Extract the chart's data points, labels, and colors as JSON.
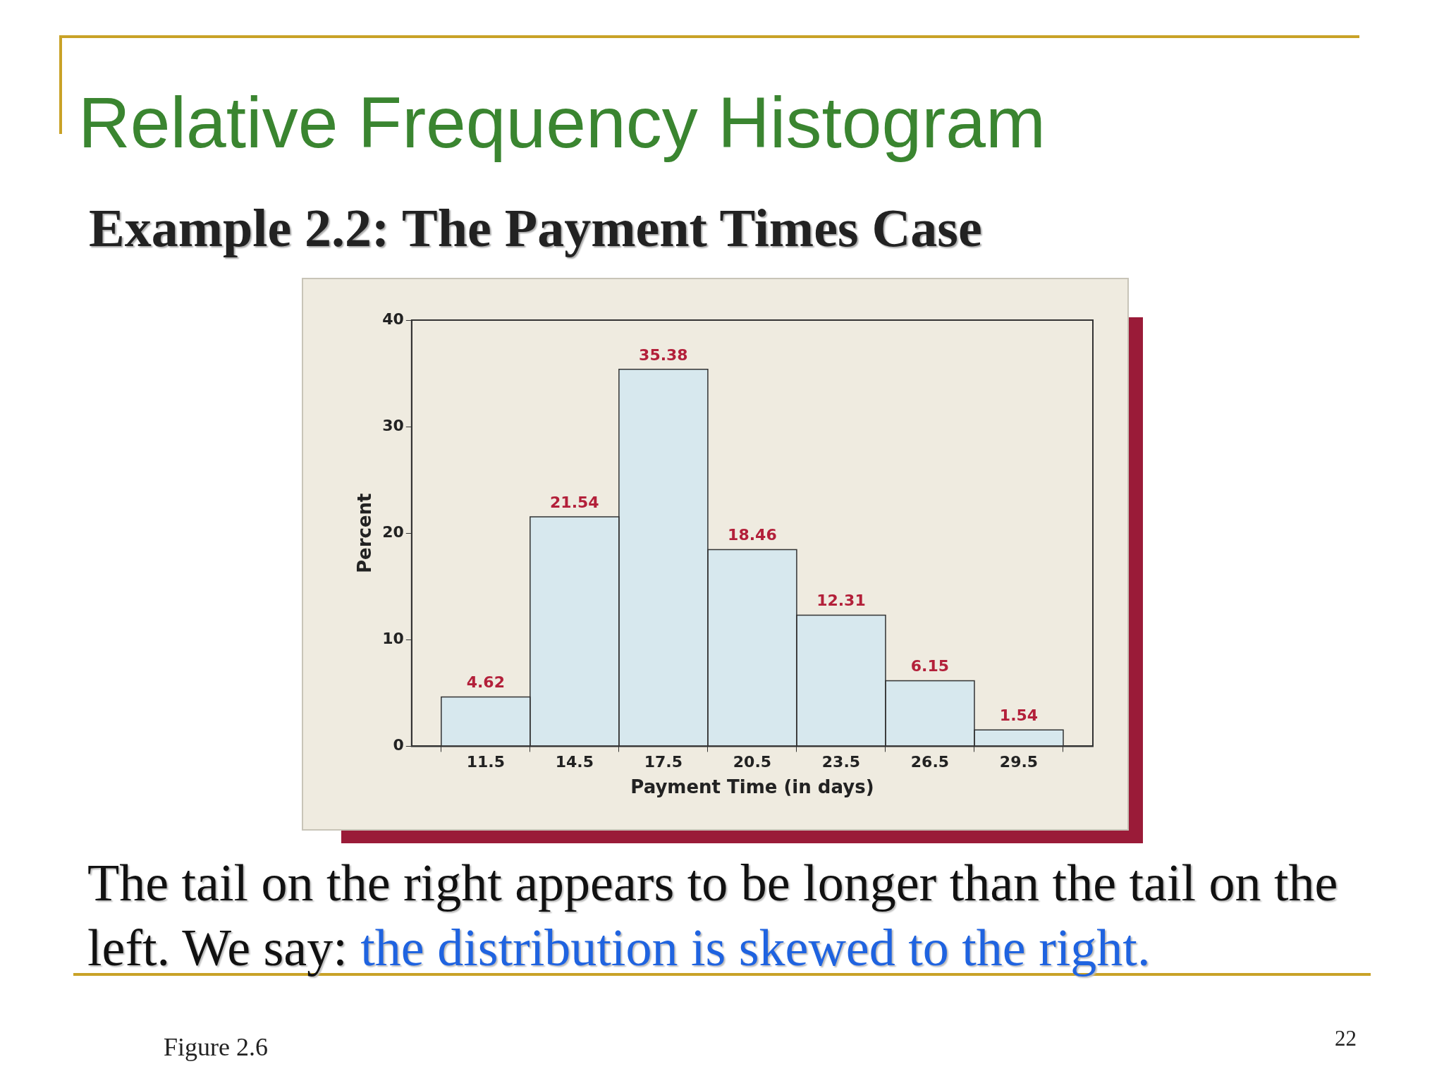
{
  "chart_data": {
    "type": "histogram",
    "title": "Relative Frequency Histogram",
    "subtitle": "Example 2.2: The Payment Times Case",
    "xlabel": "Payment Time (in days)",
    "ylabel": "Percent",
    "bins": [
      10,
      13,
      16,
      19,
      22,
      25,
      28,
      31
    ],
    "values": [
      4.62,
      21.54,
      35.38,
      18.46,
      12.31,
      6.15,
      1.54
    ],
    "color": "#d7e8ee",
    "xlim": [
      9,
      32
    ],
    "xticks": [
      11.5,
      14.5,
      17.5,
      20.5,
      23.5,
      26.5,
      29.5
    ],
    "ylim": [
      0,
      40
    ],
    "yticks": [
      0,
      10,
      20,
      30,
      40
    ],
    "data_labels": true,
    "grid": false,
    "legend": false,
    "annotations": [
      "The tail on the right appears to be longer than the tail on the left. We say:",
      "the distribution is skewed to the right.",
      "Figure 2.6",
      "22"
    ]
  }
}
